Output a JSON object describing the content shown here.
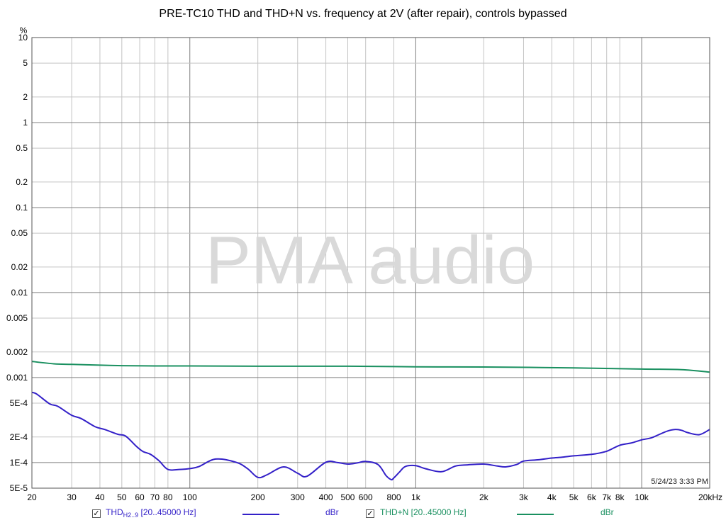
{
  "chart_data": {
    "type": "line",
    "title": "PRE-TC10 THD and THD+N vs. frequency at 2V (after repair), controls bypassed",
    "y_unit_label": "%",
    "x_scale": "log",
    "y_scale": "log",
    "xlim": [
      20,
      20000
    ],
    "ylim": [
      5e-05,
      10
    ],
    "x_ticks": [
      {
        "value": 20,
        "label": "20"
      },
      {
        "value": 30,
        "label": "30"
      },
      {
        "value": 40,
        "label": "40"
      },
      {
        "value": 50,
        "label": "50"
      },
      {
        "value": 60,
        "label": "60"
      },
      {
        "value": 70,
        "label": "70"
      },
      {
        "value": 80,
        "label": "80"
      },
      {
        "value": 100,
        "label": "100"
      },
      {
        "value": 200,
        "label": "200"
      },
      {
        "value": 300,
        "label": "300"
      },
      {
        "value": 400,
        "label": "400"
      },
      {
        "value": 500,
        "label": "500"
      },
      {
        "value": 600,
        "label": "600"
      },
      {
        "value": 800,
        "label": "800"
      },
      {
        "value": 1000,
        "label": "1k"
      },
      {
        "value": 2000,
        "label": "2k"
      },
      {
        "value": 3000,
        "label": "3k"
      },
      {
        "value": 4000,
        "label": "4k"
      },
      {
        "value": 5000,
        "label": "5k"
      },
      {
        "value": 6000,
        "label": "6k"
      },
      {
        "value": 7000,
        "label": "7k"
      },
      {
        "value": 8000,
        "label": "8k"
      },
      {
        "value": 10000,
        "label": "10k"
      },
      {
        "value": 20000,
        "label": "20kHz"
      }
    ],
    "y_ticks": [
      {
        "value": 10,
        "label": "10"
      },
      {
        "value": 5,
        "label": "5"
      },
      {
        "value": 2,
        "label": "2"
      },
      {
        "value": 1,
        "label": "1"
      },
      {
        "value": 0.5,
        "label": "0.5"
      },
      {
        "value": 0.2,
        "label": "0.2"
      },
      {
        "value": 0.1,
        "label": "0.1"
      },
      {
        "value": 0.05,
        "label": "0.05"
      },
      {
        "value": 0.02,
        "label": "0.02"
      },
      {
        "value": 0.01,
        "label": "0.01"
      },
      {
        "value": 0.005,
        "label": "0.005"
      },
      {
        "value": 0.002,
        "label": "0.002"
      },
      {
        "value": 0.001,
        "label": "0.001"
      },
      {
        "value": 0.0005,
        "label": "5E-4"
      },
      {
        "value": 0.0002,
        "label": "2E-4"
      },
      {
        "value": 0.0001,
        "label": "1E-4"
      },
      {
        "value": 5e-05,
        "label": "5E-5"
      }
    ],
    "grid": true,
    "series": [
      {
        "name": "THD+N [20..45000 Hz]",
        "color": "#1a9060",
        "x": [
          20,
          25,
          30,
          40,
          50,
          70,
          100,
          200,
          500,
          1000,
          2000,
          5000,
          10000,
          15000,
          20000
        ],
        "y": [
          0.00155,
          0.00145,
          0.00143,
          0.0014,
          0.00138,
          0.00137,
          0.00137,
          0.00136,
          0.00136,
          0.00134,
          0.00133,
          0.0013,
          0.00126,
          0.00124,
          0.00116
        ]
      },
      {
        "name": "THD H2..9 [20..45000 Hz]",
        "color": "#3320c8",
        "x": [
          20,
          21,
          24,
          26,
          30,
          33,
          38,
          42,
          48,
          52,
          58,
          62,
          67,
          73,
          80,
          90,
          100,
          110,
          130,
          160,
          180,
          200,
          220,
          260,
          300,
          330,
          400,
          450,
          500,
          550,
          600,
          680,
          740,
          780,
          800,
          850,
          900,
          1000,
          1100,
          1300,
          1500,
          1700,
          2000,
          2300,
          2500,
          2800,
          3000,
          3500,
          4000,
          4500,
          5000,
          6000,
          7000,
          8000,
          9000,
          10000,
          11000,
          12000,
          13000,
          14000,
          15000,
          16000,
          18000,
          20000
        ],
        "y": [
          0.00067,
          0.00064,
          0.00049,
          0.00046,
          0.00036,
          0.00033,
          0.000265,
          0.000245,
          0.000215,
          0.000205,
          0.000155,
          0.000135,
          0.000125,
          0.000105,
          8.3e-05,
          8.3e-05,
          8.5e-05,
          9e-05,
          0.00011,
          0.000101,
          8.5e-05,
          6.7e-05,
          7.2e-05,
          8.9e-05,
          7.5e-05,
          6.9e-05,
          0.000101,
          0.0001,
          9.6e-05,
          9.9e-05,
          0.000103,
          9.5e-05,
          7e-05,
          6.3e-05,
          6.6e-05,
          7.8e-05,
          9e-05,
          9.2e-05,
          8.5e-05,
          7.8e-05,
          9.1e-05,
          9.4e-05,
          9.6e-05,
          9.1e-05,
          8.9e-05,
          9.5e-05,
          0.000104,
          0.000108,
          0.000113,
          0.000116,
          0.00012,
          0.000125,
          0.000136,
          0.00016,
          0.00017,
          0.000185,
          0.000195,
          0.000215,
          0.000235,
          0.000245,
          0.00024,
          0.000225,
          0.000213,
          0.000245
        ]
      }
    ]
  },
  "watermark": "PMA audio",
  "timestamp": "5/24/23 3:33 PM",
  "legend": {
    "item1": {
      "checked": "✓",
      "label_main": "THD",
      "label_sub": "H2..9",
      "label_rest": " [20..45000 Hz]",
      "unit": "dBr",
      "color": "#3320c8"
    },
    "item2": {
      "checked": "✓",
      "label": "THD+N [20..45000 Hz]",
      "unit": "dBr",
      "color": "#1a9060"
    }
  }
}
